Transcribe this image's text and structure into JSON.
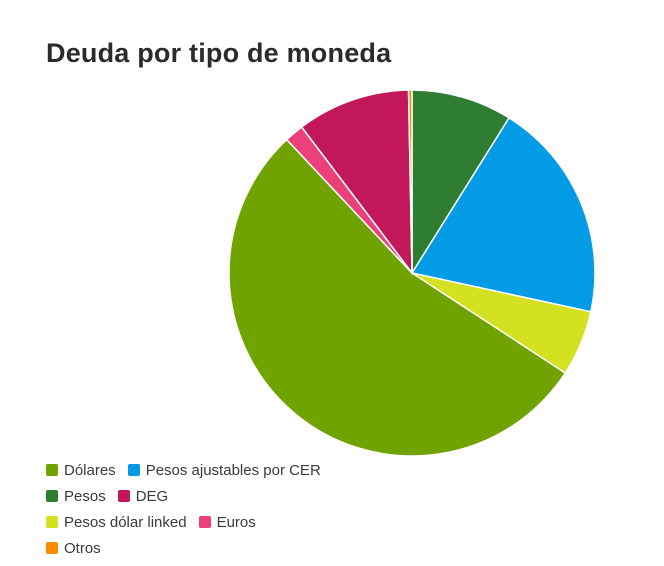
{
  "chart_data": {
    "type": "pie",
    "title": "Deuda por tipo de moneda",
    "slices": [
      {
        "label": "Pesos",
        "value": 8.9,
        "color": "#2e7d32"
      },
      {
        "label": "Pesos ajustables por CER",
        "value": 19.5,
        "color": "#039be5"
      },
      {
        "label": "Pesos dólar linked",
        "value": 5.8,
        "color": "#d4e120"
      },
      {
        "label": "Dólares",
        "value": 53.8,
        "color": "#70a300"
      },
      {
        "label": "Euros",
        "value": 1.7,
        "color": "#ec407a"
      },
      {
        "label": "DEG",
        "value": 10.0,
        "color": "#c2185b"
      },
      {
        "label": "Otros",
        "value": 0.3,
        "color": "#fb8c00"
      }
    ],
    "legend": {
      "placement": "bottom-left",
      "rows": [
        [
          {
            "label": "Dólares",
            "color": "#70a300"
          },
          {
            "label": "Pesos ajustables por CER",
            "color": "#039be5"
          }
        ],
        [
          {
            "label": "Pesos",
            "color": "#2e7d32"
          },
          {
            "label": "DEG",
            "color": "#c2185b"
          }
        ],
        [
          {
            "label": "Pesos dólar linked",
            "color": "#d4e120"
          },
          {
            "label": "Euros",
            "color": "#ec407a"
          }
        ],
        [
          {
            "label": "Otros",
            "color": "#fb8c00"
          }
        ]
      ]
    }
  }
}
